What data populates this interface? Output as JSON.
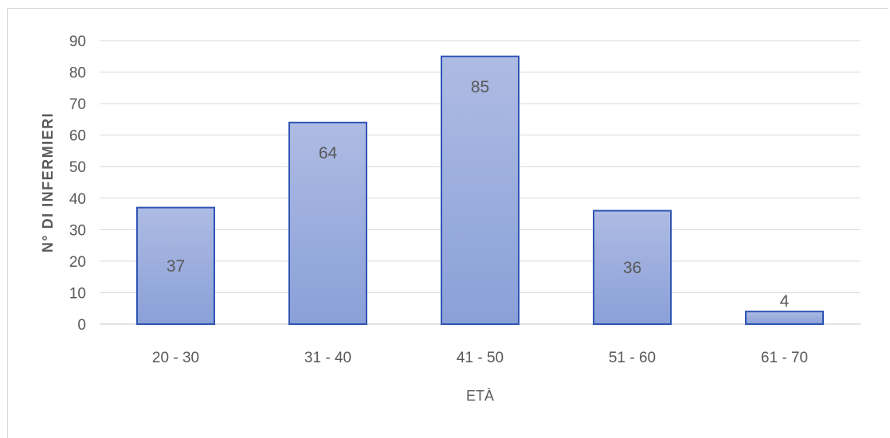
{
  "chart_data": {
    "type": "bar",
    "categories": [
      "20 - 30",
      "31 - 40",
      "41 - 50",
      "51 - 60",
      "61 - 70"
    ],
    "values": [
      37,
      64,
      85,
      36,
      4
    ],
    "data_labels": [
      "37",
      "64",
      "85",
      "36",
      "4"
    ],
    "title": "",
    "xlabel": "ETÀ",
    "ylabel": "N° DI INFERMIERI",
    "ylim": [
      0,
      90
    ],
    "yticks": [
      "0",
      "10",
      "20",
      "30",
      "40",
      "50",
      "60",
      "70",
      "80",
      "90"
    ],
    "grid": true,
    "legend": "none",
    "colors": {
      "bar_fill_top": "#aebbe3",
      "bar_fill_bottom": "#8aa0d8",
      "bar_stroke": "#2f55b4",
      "gridline": "#d9d9d9",
      "text": "#595959"
    }
  }
}
